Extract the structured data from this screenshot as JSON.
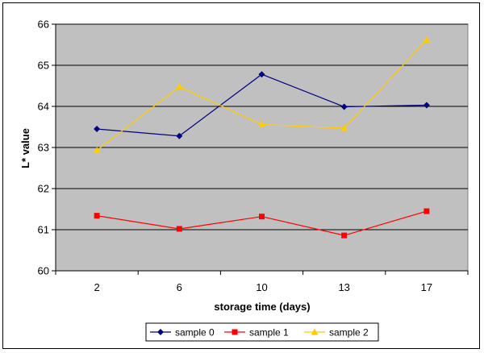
{
  "chart_data": {
    "type": "line",
    "title": "",
    "xlabel": "storage time (days)",
    "ylabel": "L* value",
    "categories": [
      "2",
      "6",
      "10",
      "13",
      "17"
    ],
    "ylim": [
      60,
      66
    ],
    "yticks": [
      60,
      61,
      62,
      63,
      64,
      65,
      66
    ],
    "grid": true,
    "legend_position": "bottom",
    "series": [
      {
        "name": "sample 0",
        "color": "#000080",
        "marker": "diamond",
        "values": [
          63.45,
          63.28,
          64.78,
          63.99,
          64.03
        ]
      },
      {
        "name": "sample 1",
        "color": "#ff0000",
        "marker": "square",
        "values": [
          61.34,
          61.02,
          61.32,
          60.86,
          61.45
        ]
      },
      {
        "name": "sample 2",
        "color": "#ffcc00",
        "marker": "triangle",
        "values": [
          62.93,
          64.48,
          63.56,
          63.47,
          65.62
        ]
      }
    ],
    "plot_background": "#c0c0c0"
  }
}
